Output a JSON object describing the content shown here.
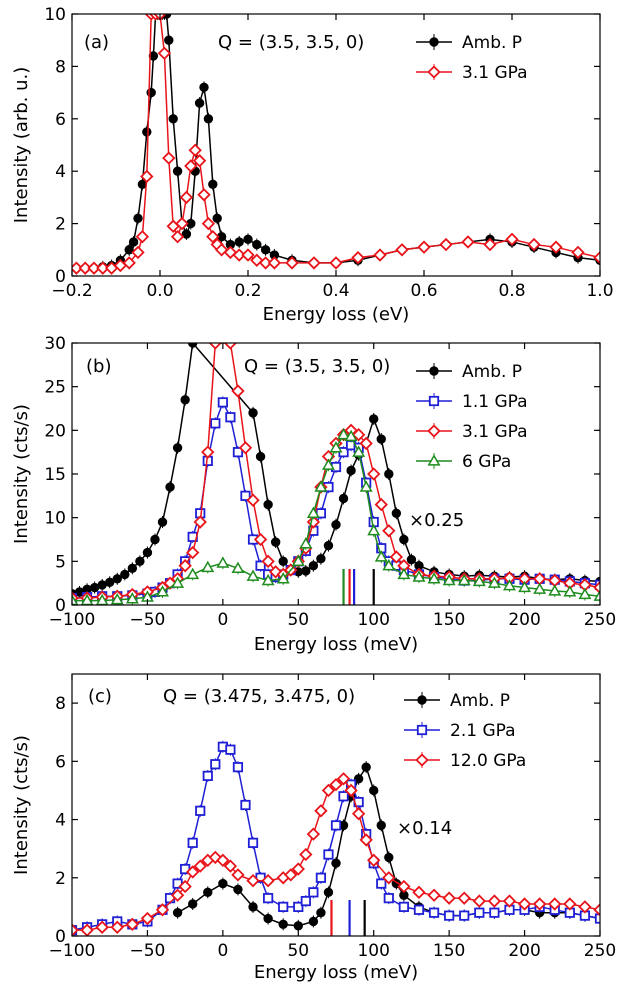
{
  "colors": {
    "ambient": "#000000",
    "blue": "#1f1fd6",
    "red": "#e8141a",
    "green": "#1e8c1e"
  },
  "chart_data": [
    {
      "type": "line",
      "panel_label": "(a)",
      "annotation": "Q = (3.5, 3.5, 0)",
      "xlabel": "Energy loss (eV)",
      "ylabel": "Intensity (arb. u.)",
      "xlim": [
        -0.2,
        1.0
      ],
      "ylim": [
        0,
        10
      ],
      "xticks": [
        -0.2,
        0.0,
        0.2,
        0.4,
        0.6,
        0.8,
        1.0
      ],
      "xtick_labels": [
        "−0.2",
        "0.0",
        "0.2",
        "0.4",
        "0.6",
        "0.8",
        "1.0"
      ],
      "yticks": [
        0,
        2,
        4,
        6,
        8,
        10
      ],
      "ytick_labels": [
        "0",
        "2",
        "4",
        "6",
        "8",
        "10"
      ],
      "legend_position": "top-right",
      "series": [
        {
          "name": "Amb. P",
          "color": "#000000",
          "marker": "circle",
          "x": [
            -0.19,
            -0.17,
            -0.15,
            -0.13,
            -0.11,
            -0.09,
            -0.07,
            -0.06,
            -0.05,
            -0.04,
            -0.03,
            -0.02,
            -0.015,
            -0.01,
            -0.005,
            0.0,
            0.005,
            0.01,
            0.015,
            0.02,
            0.03,
            0.04,
            0.05,
            0.06,
            0.07,
            0.08,
            0.09,
            0.1,
            0.11,
            0.12,
            0.13,
            0.14,
            0.16,
            0.18,
            0.2,
            0.22,
            0.24,
            0.26,
            0.3,
            0.35,
            0.4,
            0.45,
            0.5,
            0.55,
            0.6,
            0.65,
            0.7,
            0.75,
            0.8,
            0.85,
            0.9,
            0.95,
            1.0
          ],
          "y": [
            0.3,
            0.3,
            0.3,
            0.35,
            0.4,
            0.6,
            1.0,
            1.3,
            2.2,
            3.5,
            5.5,
            7.0,
            8.4,
            10,
            10,
            10,
            10,
            10,
            10,
            9.0,
            6.0,
            4.0,
            2.0,
            1.6,
            2.0,
            4.0,
            6.6,
            7.2,
            6.0,
            3.5,
            2.2,
            1.5,
            1.2,
            1.3,
            1.4,
            1.2,
            1.0,
            0.8,
            0.6,
            0.5,
            0.5,
            0.6,
            0.8,
            1.0,
            1.1,
            1.2,
            1.3,
            1.4,
            1.3,
            1.1,
            0.9,
            0.7,
            0.6
          ]
        },
        {
          "name": "3.1 GPa",
          "color": "#e8141a",
          "marker": "diamond",
          "x": [
            -0.19,
            -0.17,
            -0.15,
            -0.13,
            -0.11,
            -0.09,
            -0.07,
            -0.05,
            -0.04,
            -0.03,
            -0.02,
            -0.01,
            0.0,
            0.01,
            0.02,
            0.03,
            0.04,
            0.05,
            0.06,
            0.07,
            0.08,
            0.09,
            0.1,
            0.11,
            0.12,
            0.13,
            0.14,
            0.16,
            0.18,
            0.2,
            0.22,
            0.24,
            0.26,
            0.3,
            0.35,
            0.4,
            0.45,
            0.5,
            0.55,
            0.6,
            0.65,
            0.7,
            0.75,
            0.8,
            0.85,
            0.9,
            0.95,
            1.0
          ],
          "y": [
            0.3,
            0.3,
            0.3,
            0.3,
            0.3,
            0.4,
            0.5,
            0.9,
            1.5,
            3.8,
            10,
            10,
            10,
            8.5,
            4.5,
            1.9,
            1.5,
            2.0,
            3.0,
            4.2,
            4.8,
            4.4,
            3.1,
            2.0,
            1.5,
            1.2,
            1.0,
            0.9,
            0.8,
            0.8,
            0.6,
            0.5,
            0.5,
            0.5,
            0.5,
            0.5,
            0.7,
            0.8,
            1.0,
            1.1,
            1.2,
            1.3,
            1.2,
            1.4,
            1.2,
            1.1,
            0.9,
            0.7
          ]
        }
      ]
    },
    {
      "type": "line",
      "panel_label": "(b)",
      "annotation": "Q = (3.5, 3.5, 0)",
      "scale_annotation": "×0.25",
      "xlabel": "Energy loss (meV)",
      "ylabel": "Intensity (cts/s)",
      "xlim": [
        -100,
        250
      ],
      "ylim": [
        0,
        30
      ],
      "xticks": [
        -100,
        -50,
        0,
        50,
        100,
        150,
        200,
        250
      ],
      "xtick_labels": [
        "−100",
        "−50",
        "0",
        "50",
        "100",
        "150",
        "200",
        "250"
      ],
      "yticks": [
        0,
        5,
        10,
        15,
        20,
        25,
        30
      ],
      "ytick_labels": [
        "0",
        "5",
        "10",
        "15",
        "20",
        "25",
        "30"
      ],
      "legend_position": "top-right",
      "peak_markers": [
        {
          "x": 80,
          "color": "#1e8c1e"
        },
        {
          "x": 84,
          "color": "#e8141a"
        },
        {
          "x": 87,
          "color": "#1f1fd6"
        },
        {
          "x": 100,
          "color": "#000000"
        }
      ],
      "series": [
        {
          "name": "Amb. P",
          "color": "#000000",
          "marker": "circle",
          "x": [
            -100,
            -95,
            -90,
            -85,
            -80,
            -75,
            -70,
            -65,
            -60,
            -55,
            -50,
            -45,
            -40,
            -35,
            -30,
            -25,
            -20,
            20,
            25,
            30,
            35,
            40,
            45,
            50,
            55,
            60,
            65,
            70,
            75,
            80,
            85,
            90,
            95,
            100,
            105,
            110,
            115,
            120,
            125,
            130,
            140,
            150,
            160,
            170,
            180,
            190,
            200,
            210,
            220,
            230,
            240,
            250
          ],
          "y": [
            1.3,
            1.5,
            1.8,
            2.0,
            2.3,
            2.6,
            3.0,
            3.5,
            4.2,
            5.0,
            6.0,
            7.5,
            9.5,
            13.5,
            18.0,
            23.5,
            30,
            22.0,
            17.0,
            11.5,
            7.2,
            5.0,
            4.0,
            3.8,
            3.9,
            4.5,
            5.3,
            6.8,
            9.2,
            12.2,
            15.4,
            17.2,
            18.5,
            21.3,
            19.0,
            15.0,
            10.5,
            7.5,
            5.2,
            4.5,
            3.8,
            3.5,
            3.3,
            3.4,
            3.3,
            3.2,
            3.3,
            3.0,
            2.9,
            3.0,
            2.8,
            2.7
          ]
        },
        {
          "name": "1.1 GPa",
          "color": "#1f1fd6",
          "marker": "square",
          "x": [
            -100,
            -90,
            -80,
            -70,
            -60,
            -50,
            -45,
            -40,
            -35,
            -30,
            -25,
            -20,
            -15,
            -10,
            -5,
            0,
            5,
            10,
            15,
            20,
            25,
            30,
            35,
            40,
            45,
            50,
            55,
            60,
            65,
            70,
            75,
            80,
            85,
            90,
            95,
            100,
            105,
            110,
            115,
            120,
            130,
            140,
            150,
            160,
            170,
            180,
            190,
            200,
            210,
            220,
            230,
            240,
            250
          ],
          "y": [
            0.8,
            0.9,
            1.0,
            1.0,
            1.1,
            1.3,
            1.5,
            2.0,
            2.5,
            3.5,
            5.0,
            7.8,
            10.5,
            16.5,
            20.8,
            23.2,
            21.5,
            17.5,
            12.5,
            7.5,
            4.5,
            3.5,
            3.2,
            3.5,
            4.0,
            5.0,
            6.2,
            8.5,
            10.5,
            13.5,
            15.8,
            17.5,
            18.3,
            18.0,
            14.0,
            9.5,
            6.5,
            5.0,
            4.5,
            4.0,
            3.5,
            3.2,
            3.0,
            2.8,
            2.8,
            3.0,
            3.0,
            2.9,
            3.0,
            2.9,
            2.7,
            2.5,
            2.3
          ]
        },
        {
          "name": "3.1 GPa",
          "color": "#e8141a",
          "marker": "diamond",
          "x": [
            -100,
            -90,
            -80,
            -70,
            -60,
            -50,
            -40,
            -35,
            -30,
            -25,
            -20,
            -15,
            -10,
            -5,
            5,
            10,
            15,
            20,
            25,
            30,
            35,
            40,
            45,
            50,
            55,
            60,
            65,
            70,
            75,
            80,
            85,
            90,
            95,
            100,
            105,
            110,
            115,
            120,
            130,
            140,
            150,
            160,
            170,
            180,
            190,
            200,
            210,
            220,
            230,
            240,
            250
          ],
          "y": [
            0.8,
            0.8,
            0.9,
            1.0,
            1.2,
            1.5,
            2.0,
            2.5,
            3.0,
            4.5,
            6.0,
            9.5,
            17.5,
            30,
            30,
            24.5,
            18.0,
            12.0,
            7.5,
            5.0,
            3.8,
            3.5,
            4.0,
            5.0,
            6.5,
            9.5,
            13.5,
            17.0,
            18.5,
            19.5,
            20.0,
            19.5,
            18.5,
            15.0,
            11.5,
            8.5,
            5.5,
            4.5,
            3.5,
            3.3,
            3.2,
            3.0,
            3.0,
            3.0,
            3.1,
            3.0,
            3.0,
            2.8,
            2.5,
            2.3,
            2.0
          ]
        },
        {
          "name": "6 GPa",
          "color": "#1e8c1e",
          "marker": "triangle",
          "x": [
            -100,
            -90,
            -80,
            -70,
            -60,
            -50,
            -40,
            -30,
            -20,
            -10,
            0,
            10,
            20,
            30,
            40,
            50,
            55,
            60,
            65,
            70,
            75,
            80,
            85,
            90,
            95,
            100,
            105,
            110,
            120,
            130,
            140,
            150,
            160,
            170,
            180,
            190,
            200,
            210,
            220,
            230,
            240,
            250
          ],
          "y": [
            0.5,
            0.5,
            0.5,
            0.6,
            0.7,
            0.9,
            1.5,
            2.5,
            3.5,
            4.3,
            4.8,
            4.2,
            3.3,
            2.8,
            3.0,
            5.0,
            7.0,
            10.5,
            13.5,
            16.0,
            18.0,
            19.5,
            19.3,
            17.5,
            13.5,
            8.5,
            5.5,
            4.5,
            3.5,
            3.2,
            3.0,
            2.8,
            2.8,
            2.7,
            2.5,
            2.2,
            2.0,
            1.8,
            1.6,
            1.5,
            1.2,
            1.0
          ]
        }
      ]
    },
    {
      "type": "line",
      "panel_label": "(c)",
      "annotation": "Q = (3.475, 3.475, 0)",
      "scale_annotation": "×0.14",
      "xlabel": "Energy loss (meV)",
      "ylabel": "Intensity (cts/s)",
      "xlim": [
        -100,
        250
      ],
      "ylim": [
        0,
        9
      ],
      "xticks": [
        -100,
        -50,
        0,
        50,
        100,
        150,
        200,
        250
      ],
      "xtick_labels": [
        "−100",
        "−50",
        "0",
        "50",
        "100",
        "150",
        "200",
        "250"
      ],
      "yticks": [
        0,
        2,
        4,
        6,
        8
      ],
      "ytick_labels": [
        "0",
        "2",
        "4",
        "6",
        "8"
      ],
      "legend_position": "top-right",
      "peak_markers": [
        {
          "x": 72,
          "color": "#e8141a"
        },
        {
          "x": 84,
          "color": "#1f1fd6"
        },
        {
          "x": 94,
          "color": "#000000"
        }
      ],
      "series": [
        {
          "name": "Amb. P",
          "color": "#000000",
          "marker": "circle",
          "x": [
            -30,
            -20,
            -10,
            0,
            10,
            20,
            30,
            40,
            50,
            60,
            65,
            70,
            75,
            80,
            85,
            90,
            95,
            100,
            105,
            110,
            115,
            120,
            130,
            140,
            150,
            160,
            170,
            180,
            190,
            200,
            210,
            220,
            230,
            240,
            250
          ],
          "y": [
            0.8,
            1.1,
            1.5,
            1.8,
            1.6,
            1.0,
            0.6,
            0.4,
            0.35,
            0.5,
            0.8,
            1.5,
            2.5,
            3.8,
            4.8,
            5.4,
            5.8,
            5.0,
            3.8,
            2.7,
            1.8,
            1.4,
            1.0,
            0.8,
            0.7,
            0.7,
            0.8,
            0.8,
            0.9,
            0.9,
            0.8,
            0.8,
            0.8,
            0.7,
            0.6
          ]
        },
        {
          "name": "2.1 GPa",
          "color": "#1f1fd6",
          "marker": "square",
          "x": [
            -100,
            -90,
            -80,
            -70,
            -60,
            -50,
            -40,
            -35,
            -30,
            -25,
            -20,
            -15,
            -10,
            -5,
            0,
            5,
            10,
            15,
            20,
            25,
            30,
            40,
            50,
            55,
            60,
            65,
            70,
            75,
            80,
            85,
            90,
            95,
            100,
            105,
            110,
            120,
            130,
            140,
            150,
            160,
            170,
            180,
            190,
            200,
            210,
            220,
            230,
            240,
            250
          ],
          "y": [
            0.2,
            0.3,
            0.4,
            0.5,
            0.4,
            0.5,
            0.9,
            1.3,
            1.8,
            2.3,
            3.2,
            4.3,
            5.5,
            5.9,
            6.5,
            6.4,
            5.8,
            4.5,
            3.2,
            2.0,
            1.3,
            1.0,
            1.0,
            1.2,
            1.5,
            2.0,
            2.8,
            3.8,
            4.8,
            5.2,
            4.6,
            3.5,
            2.5,
            1.8,
            1.3,
            1.0,
            0.9,
            0.8,
            0.7,
            0.7,
            0.8,
            0.8,
            0.9,
            0.9,
            1.0,
            0.9,
            0.8,
            0.7,
            0.6
          ]
        },
        {
          "name": "12.0 GPa",
          "color": "#e8141a",
          "marker": "diamond",
          "x": [
            -100,
            -90,
            -80,
            -70,
            -60,
            -50,
            -40,
            -30,
            -25,
            -20,
            -15,
            -10,
            -5,
            0,
            5,
            10,
            20,
            30,
            40,
            45,
            50,
            55,
            60,
            65,
            70,
            75,
            80,
            85,
            90,
            95,
            100,
            110,
            120,
            130,
            140,
            150,
            160,
            170,
            180,
            190,
            200,
            210,
            220,
            230,
            240,
            250
          ],
          "y": [
            0.2,
            0.2,
            0.3,
            0.3,
            0.4,
            0.6,
            0.9,
            1.4,
            1.7,
            2.2,
            2.4,
            2.6,
            2.7,
            2.6,
            2.4,
            2.1,
            1.9,
            1.9,
            2.0,
            2.1,
            2.3,
            2.8,
            3.5,
            4.3,
            5.0,
            5.2,
            5.4,
            5.0,
            4.2,
            3.3,
            2.6,
            2.0,
            1.7,
            1.5,
            1.4,
            1.3,
            1.3,
            1.2,
            1.2,
            1.2,
            1.1,
            1.1,
            1.1,
            1.1,
            1.0,
            0.9
          ]
        }
      ]
    }
  ]
}
